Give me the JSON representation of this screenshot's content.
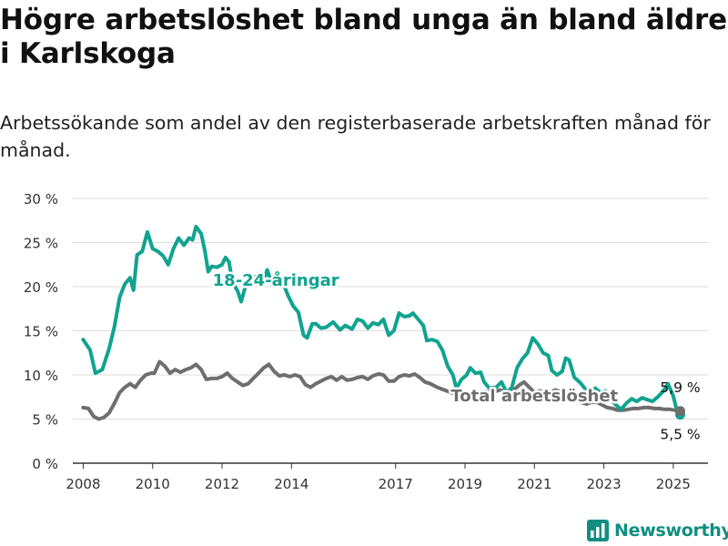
{
  "header": {
    "title": "Högre arbetslöshet bland unga än bland äldre i Karlskoga",
    "subtitle": "Arbetssökande som andel av den registerbaserade arbetskraften månad för månad."
  },
  "brand": {
    "name": "Newsworthy",
    "icon": "newsworthy-logo-icon",
    "color": "#0f8f80"
  },
  "chart_data": {
    "type": "line",
    "x_unit": "year",
    "xlim": [
      2007.7,
      2026.0
    ],
    "ylim": [
      0,
      30
    ],
    "y_ticks": [
      0,
      5,
      10,
      15,
      20,
      25,
      30
    ],
    "y_tick_labels": [
      "0 %",
      "5 %",
      "10 %",
      "15 %",
      "20 %",
      "25 %",
      "30 %"
    ],
    "x_ticks": [
      2008,
      2010,
      2012,
      2014,
      2017,
      2019,
      2021,
      2023,
      2025
    ],
    "x_tick_labels": [
      "2008",
      "2010",
      "2012",
      "2014",
      "2017",
      "2019",
      "2021",
      "2023",
      "2025"
    ],
    "grid": true,
    "series": [
      {
        "name": "18-24-åringar",
        "color": "#10a390",
        "end_label": "5,5 %",
        "points": [
          [
            2008.0,
            14.0
          ],
          [
            2008.2,
            12.8
          ],
          [
            2008.35,
            10.2
          ],
          [
            2008.55,
            10.6
          ],
          [
            2008.75,
            13.0
          ],
          [
            2008.9,
            15.5
          ],
          [
            2009.05,
            18.8
          ],
          [
            2009.2,
            20.3
          ],
          [
            2009.35,
            21.0
          ],
          [
            2009.45,
            19.6
          ],
          [
            2009.55,
            23.6
          ],
          [
            2009.7,
            24.0
          ],
          [
            2009.85,
            26.2
          ],
          [
            2010.0,
            24.3
          ],
          [
            2010.15,
            24.0
          ],
          [
            2010.3,
            23.5
          ],
          [
            2010.45,
            22.5
          ],
          [
            2010.6,
            24.3
          ],
          [
            2010.75,
            25.5
          ],
          [
            2010.9,
            24.7
          ],
          [
            2011.05,
            25.5
          ],
          [
            2011.15,
            25.3
          ],
          [
            2011.25,
            26.8
          ],
          [
            2011.4,
            26.0
          ],
          [
            2011.5,
            24.2
          ],
          [
            2011.6,
            21.7
          ],
          [
            2011.7,
            22.3
          ],
          [
            2011.85,
            22.2
          ],
          [
            2012.0,
            22.5
          ],
          [
            2012.1,
            23.3
          ],
          [
            2012.2,
            22.8
          ],
          [
            2012.3,
            20.5
          ],
          [
            2012.45,
            19.5
          ],
          [
            2012.55,
            18.3
          ],
          [
            2012.7,
            20.4
          ],
          [
            2012.9,
            21.0
          ],
          [
            2013.05,
            21.3
          ],
          [
            2013.2,
            20.7
          ],
          [
            2013.3,
            21.9
          ],
          [
            2013.45,
            20.2
          ],
          [
            2013.6,
            21.7
          ],
          [
            2013.75,
            20.5
          ],
          [
            2013.9,
            19.0
          ],
          [
            2014.05,
            17.8
          ],
          [
            2014.2,
            17.1
          ],
          [
            2014.35,
            14.5
          ],
          [
            2014.45,
            14.2
          ],
          [
            2014.6,
            15.8
          ],
          [
            2014.7,
            15.8
          ],
          [
            2014.85,
            15.3
          ],
          [
            2015.0,
            15.4
          ],
          [
            2015.2,
            16.0
          ],
          [
            2015.4,
            15.1
          ],
          [
            2015.55,
            15.6
          ],
          [
            2015.75,
            15.2
          ],
          [
            2015.9,
            16.3
          ],
          [
            2016.05,
            16.1
          ],
          [
            2016.2,
            15.3
          ],
          [
            2016.35,
            15.9
          ],
          [
            2016.5,
            15.7
          ],
          [
            2016.65,
            16.3
          ],
          [
            2016.8,
            14.5
          ],
          [
            2016.95,
            15.0
          ],
          [
            2017.1,
            17.0
          ],
          [
            2017.25,
            16.6
          ],
          [
            2017.4,
            16.7
          ],
          [
            2017.5,
            17.0
          ],
          [
            2017.65,
            16.3
          ],
          [
            2017.8,
            15.6
          ],
          [
            2017.9,
            13.9
          ],
          [
            2018.05,
            14.0
          ],
          [
            2018.2,
            13.8
          ],
          [
            2018.35,
            12.8
          ],
          [
            2018.5,
            11.0
          ],
          [
            2018.65,
            10.0
          ],
          [
            2018.75,
            8.5
          ],
          [
            2018.9,
            9.5
          ],
          [
            2019.05,
            10.0
          ],
          [
            2019.15,
            10.8
          ],
          [
            2019.3,
            10.2
          ],
          [
            2019.45,
            10.3
          ],
          [
            2019.55,
            9.2
          ],
          [
            2019.7,
            8.5
          ],
          [
            2019.9,
            8.6
          ],
          [
            2020.05,
            9.2
          ],
          [
            2020.2,
            8.0
          ],
          [
            2020.35,
            8.6
          ],
          [
            2020.5,
            10.8
          ],
          [
            2020.65,
            11.8
          ],
          [
            2020.8,
            12.5
          ],
          [
            2020.95,
            14.2
          ],
          [
            2021.1,
            13.5
          ],
          [
            2021.25,
            12.5
          ],
          [
            2021.4,
            12.2
          ],
          [
            2021.5,
            10.5
          ],
          [
            2021.65,
            10.0
          ],
          [
            2021.8,
            10.4
          ],
          [
            2021.9,
            11.9
          ],
          [
            2022.0,
            11.7
          ],
          [
            2022.15,
            9.7
          ],
          [
            2022.3,
            9.2
          ],
          [
            2022.45,
            8.5
          ],
          [
            2022.6,
            7.5
          ],
          [
            2022.75,
            8.5
          ],
          [
            2022.9,
            8.0
          ],
          [
            2023.05,
            8.2
          ],
          [
            2023.2,
            7.2
          ],
          [
            2023.35,
            6.6
          ],
          [
            2023.5,
            6.1
          ],
          [
            2023.65,
            6.8
          ],
          [
            2023.8,
            7.3
          ],
          [
            2023.95,
            7.0
          ],
          [
            2024.1,
            7.4
          ],
          [
            2024.25,
            7.2
          ],
          [
            2024.4,
            7.0
          ],
          [
            2024.55,
            7.5
          ],
          [
            2024.7,
            8.1
          ],
          [
            2024.85,
            9.0
          ],
          [
            2025.0,
            7.6
          ],
          [
            2025.1,
            6.0
          ],
          [
            2025.2,
            5.5
          ]
        ]
      },
      {
        "name": "Total arbetslöshet",
        "color": "#6e6e6e",
        "end_label": "5,9 %",
        "points": [
          [
            2008.0,
            6.3
          ],
          [
            2008.15,
            6.2
          ],
          [
            2008.3,
            5.3
          ],
          [
            2008.45,
            5.0
          ],
          [
            2008.6,
            5.2
          ],
          [
            2008.75,
            5.7
          ],
          [
            2008.9,
            6.8
          ],
          [
            2009.05,
            8.0
          ],
          [
            2009.2,
            8.6
          ],
          [
            2009.35,
            9.0
          ],
          [
            2009.5,
            8.6
          ],
          [
            2009.65,
            9.4
          ],
          [
            2009.8,
            10.0
          ],
          [
            2009.95,
            10.2
          ],
          [
            2010.05,
            10.2
          ],
          [
            2010.2,
            11.5
          ],
          [
            2010.35,
            11.0
          ],
          [
            2010.5,
            10.2
          ],
          [
            2010.65,
            10.6
          ],
          [
            2010.8,
            10.3
          ],
          [
            2010.95,
            10.6
          ],
          [
            2011.1,
            10.8
          ],
          [
            2011.25,
            11.2
          ],
          [
            2011.4,
            10.6
          ],
          [
            2011.55,
            9.5
          ],
          [
            2011.7,
            9.6
          ],
          [
            2011.85,
            9.6
          ],
          [
            2012.0,
            9.8
          ],
          [
            2012.15,
            10.2
          ],
          [
            2012.3,
            9.6
          ],
          [
            2012.45,
            9.2
          ],
          [
            2012.6,
            8.8
          ],
          [
            2012.75,
            9.0
          ],
          [
            2012.9,
            9.6
          ],
          [
            2013.05,
            10.2
          ],
          [
            2013.2,
            10.8
          ],
          [
            2013.35,
            11.2
          ],
          [
            2013.5,
            10.4
          ],
          [
            2013.65,
            9.9
          ],
          [
            2013.8,
            10.0
          ],
          [
            2013.95,
            9.8
          ],
          [
            2014.1,
            10.0
          ],
          [
            2014.25,
            9.8
          ],
          [
            2014.4,
            8.9
          ],
          [
            2014.55,
            8.6
          ],
          [
            2014.7,
            9.0
          ],
          [
            2014.85,
            9.3
          ],
          [
            2015.0,
            9.6
          ],
          [
            2015.15,
            9.8
          ],
          [
            2015.3,
            9.4
          ],
          [
            2015.45,
            9.8
          ],
          [
            2015.6,
            9.4
          ],
          [
            2015.75,
            9.5
          ],
          [
            2015.9,
            9.7
          ],
          [
            2016.05,
            9.8
          ],
          [
            2016.2,
            9.5
          ],
          [
            2016.35,
            9.9
          ],
          [
            2016.5,
            10.1
          ],
          [
            2016.65,
            10.0
          ],
          [
            2016.8,
            9.3
          ],
          [
            2016.95,
            9.3
          ],
          [
            2017.1,
            9.8
          ],
          [
            2017.25,
            10.0
          ],
          [
            2017.4,
            9.9
          ],
          [
            2017.55,
            10.1
          ],
          [
            2017.7,
            9.7
          ],
          [
            2017.85,
            9.2
          ],
          [
            2018.0,
            9.0
          ],
          [
            2018.2,
            8.6
          ],
          [
            2018.4,
            8.3
          ],
          [
            2018.6,
            8.0
          ],
          [
            2018.8,
            7.6
          ],
          [
            2019.0,
            7.6
          ],
          [
            2019.2,
            7.8
          ],
          [
            2019.4,
            8.0
          ],
          [
            2019.6,
            8.1
          ],
          [
            2019.8,
            8.0
          ],
          [
            2020.0,
            8.3
          ],
          [
            2020.2,
            8.0
          ],
          [
            2020.4,
            8.3
          ],
          [
            2020.55,
            8.8
          ],
          [
            2020.7,
            9.2
          ],
          [
            2020.85,
            8.6
          ],
          [
            2021.0,
            8.0
          ],
          [
            2021.15,
            8.2
          ],
          [
            2021.3,
            7.9
          ],
          [
            2021.45,
            8.0
          ],
          [
            2021.6,
            8.3
          ],
          [
            2021.75,
            8.1
          ],
          [
            2021.9,
            7.6
          ],
          [
            2022.05,
            7.6
          ],
          [
            2022.2,
            7.3
          ],
          [
            2022.35,
            6.9
          ],
          [
            2022.5,
            6.7
          ],
          [
            2022.65,
            6.9
          ],
          [
            2022.8,
            6.9
          ],
          [
            2022.95,
            6.6
          ],
          [
            2023.1,
            6.3
          ],
          [
            2023.25,
            6.2
          ],
          [
            2023.4,
            6.0
          ],
          [
            2023.55,
            6.0
          ],
          [
            2023.7,
            6.1
          ],
          [
            2023.85,
            6.2
          ],
          [
            2024.0,
            6.2
          ],
          [
            2024.15,
            6.3
          ],
          [
            2024.3,
            6.3
          ],
          [
            2024.45,
            6.2
          ],
          [
            2024.6,
            6.2
          ],
          [
            2024.75,
            6.1
          ],
          [
            2024.9,
            6.1
          ],
          [
            2025.05,
            6.0
          ],
          [
            2025.2,
            5.9
          ]
        ]
      }
    ],
    "annotations": [
      {
        "text": "18-24-åringar",
        "series": 0,
        "x": 2013.55,
        "y": 20.1
      },
      {
        "text": "Total arbetslöshet",
        "series": 1,
        "x": 2021.0,
        "y": 7.0
      }
    ]
  }
}
